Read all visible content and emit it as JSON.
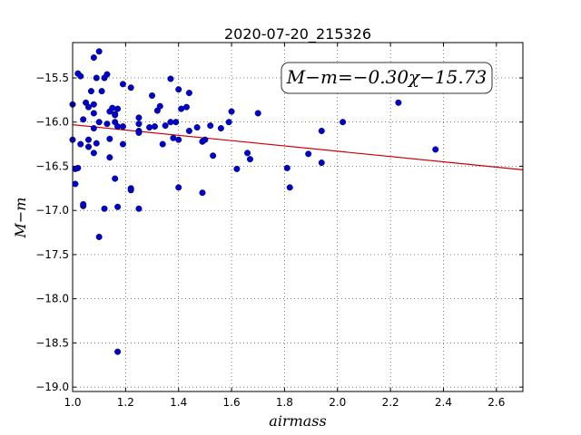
{
  "chart_data": {
    "type": "scatter",
    "title": "2020-07-20_215326",
    "xlabel": "airmass",
    "ylabel": "M−m",
    "xlim": [
      1.0,
      2.7
    ],
    "ylim": [
      -19.05,
      -15.1
    ],
    "xticks": [
      1.0,
      1.2,
      1.4,
      1.6,
      1.8,
      2.0,
      2.2,
      2.4,
      2.6
    ],
    "xtick_labels": [
      "1.0",
      "1.2",
      "1.4",
      "1.6",
      "1.8",
      "2.0",
      "2.2",
      "2.4",
      "2.6"
    ],
    "yticks": [
      -15.5,
      -16.0,
      -16.5,
      -17.0,
      -17.5,
      -18.0,
      -18.5,
      -19.0
    ],
    "ytick_labels": [
      "−15.5",
      "−16.0",
      "−16.5",
      "−17.0",
      "−17.5",
      "−18.0",
      "−18.5",
      "−19.0"
    ],
    "grid": true,
    "point_color": "#0000cc",
    "fit_line": {
      "slope": -0.3,
      "intercept": -15.73,
      "color": "#cc0000"
    },
    "annotation": "M−m=−0.30χ−15.73",
    "annotation_position": "top-right",
    "x": [
      1.0,
      1.02,
      1.03,
      1.04,
      1.05,
      1.06,
      1.07,
      1.08,
      1.08,
      1.09,
      1.1,
      1.11,
      1.12,
      1.13,
      1.13,
      1.14,
      1.15,
      1.16,
      1.16,
      1.17,
      1.19,
      1.19,
      1.22,
      1.25,
      1.25,
      1.25,
      1.29,
      1.3,
      1.32,
      1.33,
      1.35,
      1.37,
      1.38,
      1.39,
      1.4,
      1.41,
      1.43,
      1.44,
      1.47,
      1.49,
      1.52,
      1.56,
      1.59,
      1.6,
      1.7,
      1.94,
      2.02,
      2.23,
      1.0,
      1.03,
      1.06,
      1.08,
      1.09,
      1.1,
      1.14,
      1.16,
      1.17,
      1.19,
      1.25,
      1.31,
      1.34,
      1.37,
      1.4,
      1.44,
      1.49,
      1.5,
      1.53,
      1.62,
      1.66,
      1.67,
      1.81,
      1.89,
      1.94,
      2.37,
      1.01,
      1.01,
      1.02,
      1.04,
      1.06,
      1.08,
      1.14,
      1.16,
      1.22,
      1.22,
      1.4,
      1.49,
      1.82,
      1.04,
      1.12,
      1.17,
      1.25,
      1.1,
      1.17,
      1.08
    ],
    "y": [
      -15.8,
      -15.45,
      -15.48,
      -15.97,
      -15.78,
      -15.83,
      -15.65,
      -15.27,
      -15.9,
      -15.5,
      -15.2,
      -15.65,
      -15.5,
      -15.46,
      -16.02,
      -15.88,
      -15.84,
      -15.91,
      -15.92,
      -16.05,
      -15.57,
      -16.25,
      -15.61,
      -15.95,
      -16.02,
      -16.1,
      -16.06,
      -15.7,
      -15.87,
      -15.82,
      -16.04,
      -15.51,
      -16.18,
      -16.0,
      -15.63,
      -15.85,
      -15.83,
      -15.67,
      -16.06,
      -16.22,
      -16.04,
      -16.07,
      -16.0,
      -15.88,
      -15.9,
      -16.1,
      -16.0,
      -15.78,
      -16.2,
      -16.25,
      -16.2,
      -16.07,
      -16.24,
      -16.0,
      -16.19,
      -16.0,
      -15.85,
      -16.05,
      -16.12,
      -16.05,
      -16.25,
      -16.0,
      -16.2,
      -16.1,
      -16.22,
      -16.2,
      -16.38,
      -16.53,
      -16.35,
      -16.42,
      -16.52,
      -16.36,
      -16.46,
      -16.31,
      -16.7,
      -16.53,
      -16.52,
      -16.95,
      -16.28,
      -16.35,
      -16.4,
      -16.64,
      -16.75,
      -16.77,
      -16.74,
      -16.8,
      -16.74,
      -16.93,
      -16.98,
      -16.96,
      -16.98,
      -17.3,
      -18.6,
      -15.8
    ]
  }
}
